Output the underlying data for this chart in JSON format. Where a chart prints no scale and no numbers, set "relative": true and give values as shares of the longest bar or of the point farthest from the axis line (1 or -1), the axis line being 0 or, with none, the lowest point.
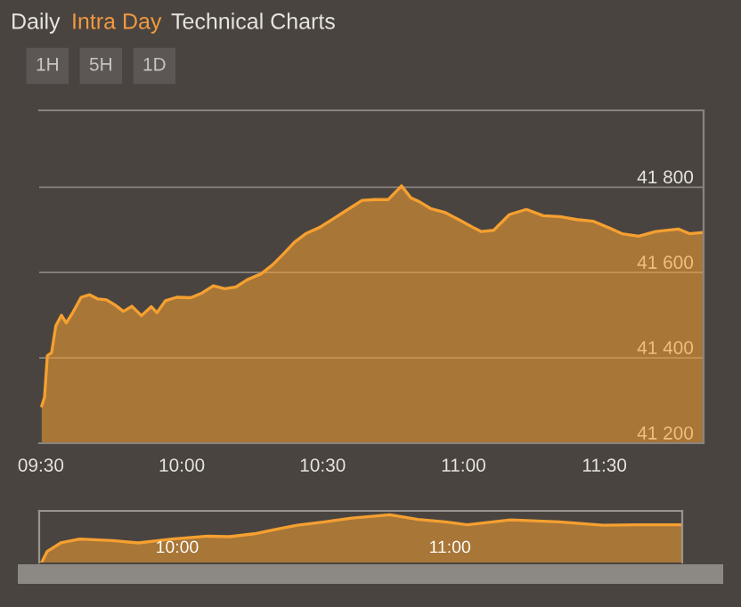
{
  "chart_data": [
    {
      "type": "area",
      "annotations": [
        "Daily",
        "Intra Day",
        "Technical Charts",
        "1H",
        "5H",
        "1D"
      ],
      "x": [
        9.503,
        9.513,
        9.523,
        9.538,
        9.553,
        9.573,
        9.59,
        9.613,
        9.643,
        9.673,
        9.703,
        9.733,
        9.763,
        9.793,
        9.823,
        9.857,
        9.892,
        9.912,
        9.942,
        9.982,
        10.032,
        10.072,
        10.112,
        10.152,
        10.192,
        10.232,
        10.282,
        10.322,
        10.36,
        10.4,
        10.44,
        10.49,
        10.54,
        10.59,
        10.64,
        10.685,
        10.733,
        10.78,
        10.813,
        10.843,
        10.883,
        10.933,
        10.983,
        11.033,
        11.063,
        11.107,
        11.163,
        11.223,
        11.283,
        11.342,
        11.402,
        11.462,
        11.522,
        11.562,
        11.622,
        11.682,
        11.762,
        11.802,
        11.852
      ],
      "series": [
        {
          "color": "#f5a030",
          "values": [
            41287,
            41308,
            41405,
            41412,
            41475,
            41500,
            41482,
            41506,
            41542,
            41548,
            41538,
            41536,
            41524,
            41509,
            41521,
            41499,
            41520,
            41506,
            41534,
            41542,
            41541,
            41552,
            41569,
            41562,
            41566,
            41583,
            41597,
            41618,
            41643,
            41671,
            41691,
            41706,
            41727,
            41748,
            41769,
            41771,
            41771,
            41803,
            41775,
            41766,
            41750,
            41741,
            41724,
            41706,
            41696,
            41699,
            41736,
            41748,
            41733,
            41731,
            41724,
            41720,
            41703,
            41691,
            41685,
            41696,
            41702,
            41691,
            41694
          ]
        }
      ],
      "xlim": [
        9.494,
        11.852
      ],
      "ylim": [
        41200,
        41980
      ],
      "xticks": [
        {
          "value": 9.5,
          "label": "09:30"
        },
        {
          "value": 10,
          "label": "10:00"
        },
        {
          "value": 10.5,
          "label": "10:30"
        },
        {
          "value": 11,
          "label": "11:00"
        },
        {
          "value": 11.5,
          "label": "11:30"
        }
      ],
      "yticks": [
        {
          "value": 41200,
          "label": "41 200"
        },
        {
          "value": 41400,
          "label": "41 400"
        },
        {
          "value": 41600,
          "label": "41 600"
        },
        {
          "value": 41800,
          "label": "41 800"
        }
      ],
      "grid": "y"
    },
    {
      "type": "area",
      "relative": true,
      "x": [
        9.503,
        9.523,
        9.573,
        9.643,
        9.763,
        9.857,
        9.982,
        10.112,
        10.192,
        10.282,
        10.36,
        10.44,
        10.54,
        10.64,
        10.78,
        10.883,
        10.983,
        11.063,
        11.223,
        11.402,
        11.562,
        11.682,
        11.852
      ],
      "series": [
        {
          "color": "#f5a030",
          "values": [
            0,
            0.23,
            0.41,
            0.49,
            0.46,
            0.41,
            0.49,
            0.55,
            0.54,
            0.6,
            0.69,
            0.78,
            0.85,
            0.93,
            1,
            0.9,
            0.85,
            0.79,
            0.89,
            0.85,
            0.78,
            0.79,
            0.79
          ]
        }
      ],
      "xlim": [
        9.494,
        11.852
      ],
      "xticks": [
        {
          "value": 10,
          "label": "10:00"
        },
        {
          "value": 11,
          "label": "11:00"
        }
      ],
      "tick_labels": "x"
    }
  ]
}
